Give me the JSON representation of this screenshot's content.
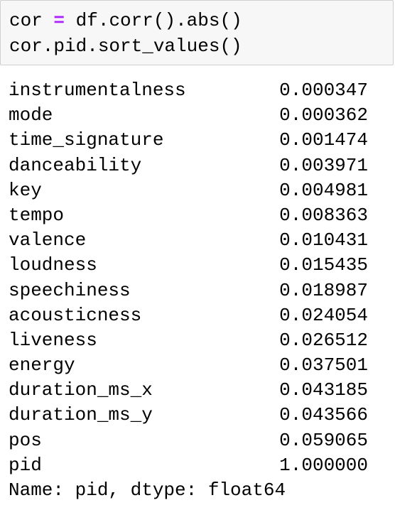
{
  "input": {
    "line1": {
      "var": "cor",
      "op": "=",
      "expr": "df.corr().abs()"
    },
    "line2": "cor.pid.sort_values()"
  },
  "output": {
    "rows": [
      {
        "label": "instrumentalness",
        "value": "0.000347"
      },
      {
        "label": "mode",
        "value": "0.000362"
      },
      {
        "label": "time_signature",
        "value": "0.001474"
      },
      {
        "label": "danceability",
        "value": "0.003971"
      },
      {
        "label": "key",
        "value": "0.004981"
      },
      {
        "label": "tempo",
        "value": "0.008363"
      },
      {
        "label": "valence",
        "value": "0.010431"
      },
      {
        "label": "loudness",
        "value": "0.015435"
      },
      {
        "label": "speechiness",
        "value": "0.018987"
      },
      {
        "label": "acousticness",
        "value": "0.024054"
      },
      {
        "label": "liveness",
        "value": "0.026512"
      },
      {
        "label": "energy",
        "value": "0.037501"
      },
      {
        "label": "duration_ms_x",
        "value": "0.043185"
      },
      {
        "label": "duration_ms_y",
        "value": "0.043566"
      },
      {
        "label": "pos",
        "value": "0.059065"
      },
      {
        "label": "pid",
        "value": "1.000000"
      }
    ],
    "footer": "Name: pid, dtype: float64"
  },
  "colors": {
    "operator": "#aa22ff",
    "cell_background": "#f7f7f7",
    "cell_border": "#cfcfcf"
  }
}
